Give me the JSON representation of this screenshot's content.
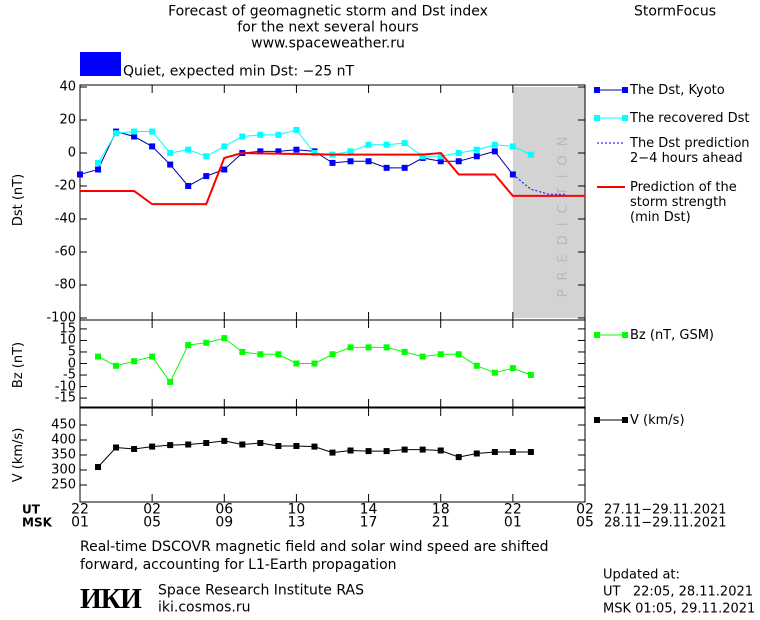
{
  "header": {
    "title_lines": [
      "Forecast of geomagnetic storm and Dst index",
      "for the next several hours",
      "www.spaceweather.ru"
    ],
    "brand": "StormFocus",
    "status": {
      "label": "Quiet, expected min Dst: −25 nT",
      "color": "#0000ff"
    }
  },
  "chart_data": [
    {
      "type": "line",
      "y_label": "Dst (nT)",
      "xlim": [
        0,
        28
      ],
      "ylim": [
        -100,
        40
      ],
      "yticks": [
        40,
        20,
        0,
        -20,
        -40,
        -60,
        -80,
        -100
      ],
      "prediction_xlim": [
        24,
        28
      ],
      "prediction_label": "PREDICTION",
      "series": [
        {
          "name": "The Dst, Kyoto",
          "color": "#0000ff",
          "line_color": "#000099",
          "marker": true,
          "x": [
            0,
            1,
            2,
            3,
            4,
            5,
            6,
            7,
            8,
            9,
            10,
            11,
            12,
            13,
            14,
            15,
            16,
            17,
            18,
            19,
            20,
            21,
            22,
            23,
            24
          ],
          "values": [
            -13,
            -10,
            13,
            10,
            4,
            -7,
            -20,
            -14,
            -10,
            0,
            1,
            1,
            2,
            1,
            -6,
            -5,
            -5,
            -9,
            -9,
            -3,
            -5,
            -5,
            -2,
            1,
            -13
          ]
        },
        {
          "name": "The recovered Dst",
          "color": "#00ffff",
          "marker": true,
          "x": [
            1,
            2,
            3,
            4,
            5,
            6,
            7,
            8,
            9,
            10,
            11,
            12,
            13,
            14,
            15,
            16,
            17,
            18,
            19,
            20,
            21,
            22,
            23,
            24,
            25
          ],
          "values": [
            -6,
            12,
            13,
            13,
            0,
            2,
            -2,
            4,
            10,
            11,
            11,
            14,
            0,
            -1,
            1,
            5,
            5,
            6,
            -2,
            -2,
            0,
            2,
            5,
            4,
            -1
          ]
        },
        {
          "name": "The Dst prediction\n2−4 hours ahead",
          "color": "#0000ff",
          "style": "dotted",
          "x": [
            24,
            25,
            26,
            27
          ],
          "values": [
            -13,
            -22,
            -25,
            -25
          ]
        },
        {
          "name": "Prediction of the\nstorm strength\n(min Dst)",
          "color": "#ff0000",
          "width": 2,
          "x": [
            0,
            3,
            4,
            7,
            8,
            9,
            14,
            19,
            20,
            21,
            23,
            24,
            28
          ],
          "values": [
            -23,
            -23,
            -31,
            -31,
            -3,
            0,
            -1,
            -1,
            0,
            -13,
            -13,
            -26,
            -26
          ]
        }
      ]
    },
    {
      "type": "line",
      "y_label": "Bz (nT)",
      "xlim": [
        0,
        28
      ],
      "ylim": [
        -18,
        18
      ],
      "yticks": [
        15,
        10,
        5,
        0,
        -5,
        -10,
        -15
      ],
      "series": [
        {
          "name": "Bz (nT, GSM)",
          "color": "#00ff00",
          "marker": true,
          "x": [
            1,
            2,
            3,
            4,
            5,
            6,
            7,
            8,
            9,
            10,
            11,
            12,
            13,
            14,
            15,
            16,
            17,
            18,
            19,
            20,
            21,
            22,
            23,
            24,
            25
          ],
          "values": [
            3,
            -1,
            1,
            3,
            -8,
            8,
            9,
            11,
            5,
            4,
            4,
            0,
            0,
            4,
            7,
            7,
            7,
            5,
            3,
            4,
            4,
            -1,
            -4,
            -2,
            -5
          ]
        }
      ]
    },
    {
      "type": "line",
      "y_label": "V (km/s)",
      "xlim": [
        0,
        28
      ],
      "ylim": [
        200,
        500
      ],
      "yticks": [
        450,
        400,
        350,
        300,
        250
      ],
      "series": [
        {
          "name": "V (km/s)",
          "color": "#000000",
          "marker": true,
          "x": [
            1,
            2,
            3,
            4,
            5,
            6,
            7,
            8,
            9,
            10,
            11,
            12,
            13,
            14,
            15,
            16,
            17,
            18,
            19,
            20,
            21,
            22,
            23,
            24,
            25
          ],
          "values": [
            310,
            375,
            370,
            378,
            383,
            385,
            390,
            397,
            385,
            390,
            380,
            380,
            378,
            358,
            365,
            363,
            363,
            368,
            368,
            365,
            343,
            355,
            360,
            360,
            360
          ]
        }
      ],
      "xticks": [
        {
          "value": 0,
          "label": "22"
        },
        {
          "value": 4,
          "label": "02"
        },
        {
          "value": 8,
          "label": "06"
        },
        {
          "value": 12,
          "label": "10"
        },
        {
          "value": 16,
          "label": "14"
        },
        {
          "value": 20,
          "label": "18"
        },
        {
          "value": 24,
          "label": "22"
        },
        {
          "value": 28,
          "label": "02"
        }
      ],
      "xticks_msk": [
        {
          "value": 0,
          "label": "01"
        },
        {
          "value": 4,
          "label": "05"
        },
        {
          "value": 8,
          "label": "09"
        },
        {
          "value": 12,
          "label": "13"
        },
        {
          "value": 16,
          "label": "17"
        },
        {
          "value": 20,
          "label": "21"
        },
        {
          "value": 24,
          "label": "01"
        },
        {
          "value": 28,
          "label": "05"
        }
      ],
      "x_rows": [
        "UT",
        "MSK"
      ],
      "x_dates": [
        "27.11−29.11.2021",
        "28.11−29.11.2021"
      ]
    }
  ],
  "footer": {
    "note": "Real-time DSCOVR magnetic field and solar wind speed are shifted\nforward, accounting for L1-Earth propagation",
    "logo": "ИКИ",
    "institute": "Space Research Institute RAS",
    "site": "iki.cosmos.ru",
    "updated_title": "Updated at:",
    "updated_ut": "UT   22:05, 28.11.2021",
    "updated_msk": "MSK 01:05, 29.11.2021"
  }
}
